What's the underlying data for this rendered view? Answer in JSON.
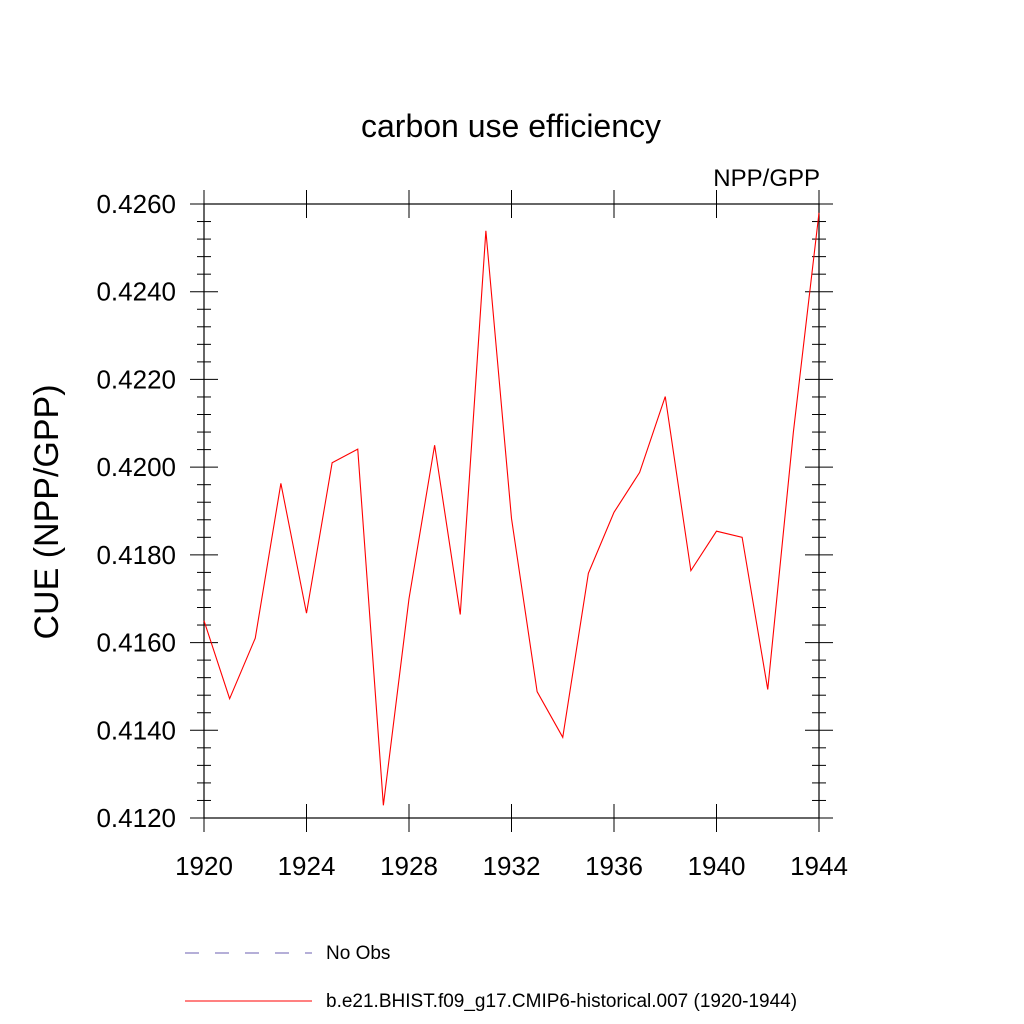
{
  "chart_data": {
    "type": "line",
    "title": "carbon use efficiency",
    "subtitle_right": "NPP/GPP",
    "ylabel": "CUE  (NPP/GPP)",
    "xlabel": "",
    "xlim": [
      1920,
      1944
    ],
    "ylim": [
      0.412,
      0.426
    ],
    "x_ticks": [
      "1920",
      "1924",
      "1928",
      "1932",
      "1936",
      "1940",
      "1944"
    ],
    "y_ticks": [
      "0.4120",
      "0.4140",
      "0.4160",
      "0.4180",
      "0.4200",
      "0.4220",
      "0.4240",
      "0.4260"
    ],
    "grid": false,
    "legend_position": "bottom",
    "series": [
      {
        "name": "No Obs",
        "color": "#6b5fb0",
        "style": "dashed",
        "x": [],
        "y": []
      },
      {
        "name": "b.e21.BHIST.f09_g17.CMIP6-historical.007 (1920-1944)",
        "color": "#ff0000",
        "style": "solid",
        "x": [
          1920,
          1921,
          1922,
          1923,
          1924,
          1925,
          1926,
          1927,
          1928,
          1929,
          1930,
          1931,
          1932,
          1933,
          1934,
          1935,
          1936,
          1937,
          1938,
          1939,
          1940,
          1941,
          1942,
          1943,
          1944
        ],
        "y": [
          0.4165,
          0.41472,
          0.4161,
          0.41963,
          0.41667,
          0.4201,
          0.42041,
          0.41229,
          0.417,
          0.4205,
          0.41664,
          0.42539,
          0.41883,
          0.41488,
          0.41384,
          0.41758,
          0.41897,
          0.41988,
          0.42161,
          0.41764,
          0.41854,
          0.4184,
          0.41493,
          0.4208,
          0.4258
        ]
      }
    ]
  }
}
